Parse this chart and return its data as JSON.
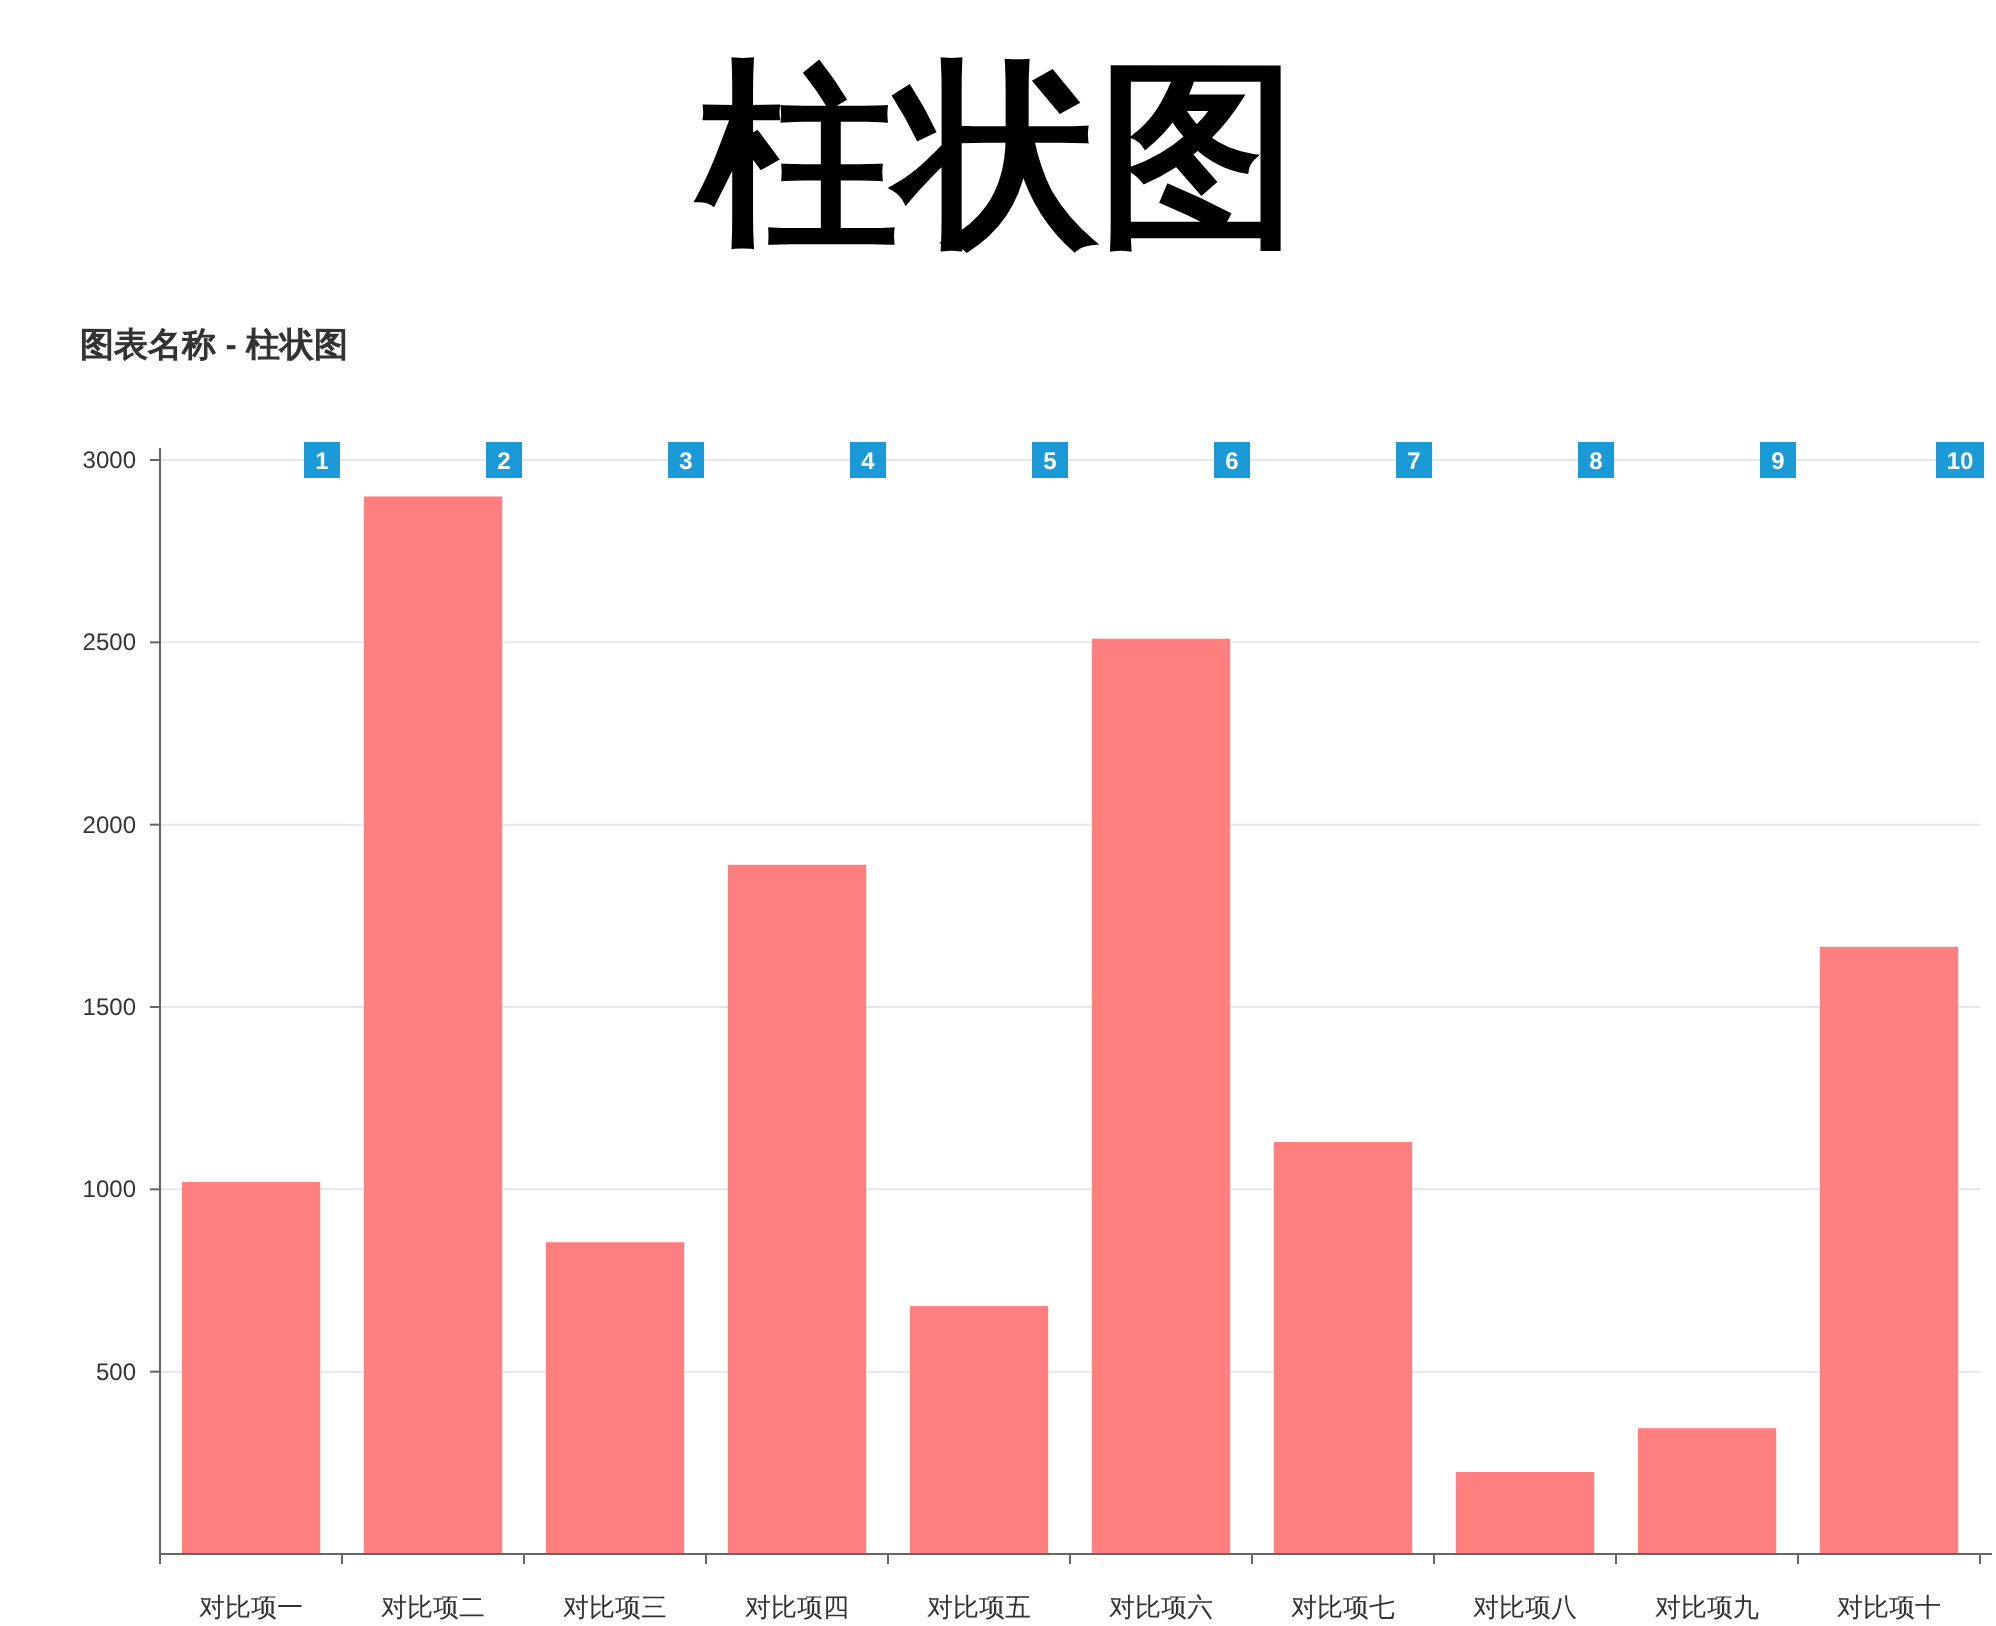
{
  "chart_data": {
    "type": "bar",
    "title": "柱状图",
    "subtitle": "图表名称 - 柱状图",
    "categories": [
      "对比项一",
      "对比项二",
      "对比项三",
      "对比项四",
      "对比项五",
      "对比项六",
      "对比项七",
      "对比项八",
      "对比项九",
      "对比项十"
    ],
    "values": [
      1020,
      2900,
      855,
      1890,
      680,
      2510,
      1130,
      225,
      345,
      1665
    ],
    "color": "#ff7f7f",
    "ylim": [
      0,
      3000
    ],
    "yticks": [
      500,
      1000,
      1500,
      2000,
      2500,
      3000
    ],
    "grid": "y",
    "annotations": [
      "1",
      "2",
      "3",
      "4",
      "5",
      "6",
      "7",
      "8",
      "9",
      "10"
    ]
  }
}
